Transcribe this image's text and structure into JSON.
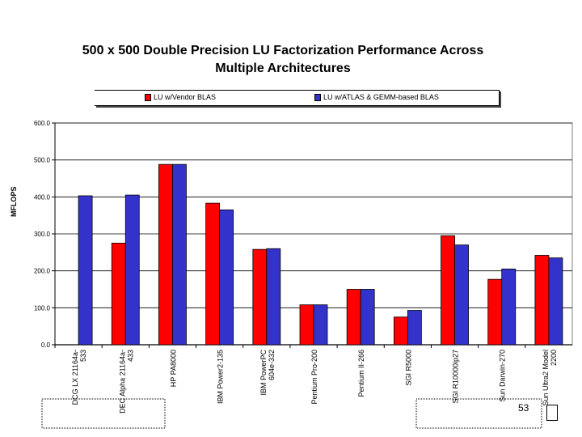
{
  "colors": {
    "vendor": "#ff0000",
    "atlas": "#3333cc",
    "plot_bg": "#ffffff",
    "gridline": "#000000"
  },
  "page_number": "53",
  "chart_data": {
    "type": "bar",
    "title": "500 x 500 Double Precision LU Factorization Performance Across Multiple Architectures",
    "title_lines": [
      "500 x 500 Double Precision LU Factorization Performance Across",
      "Multiple Architectures"
    ],
    "ylabel": "MFLOPS",
    "xlabel": "",
    "ylim": [
      0,
      600
    ],
    "yticks": [
      0,
      100,
      200,
      300,
      400,
      500,
      600
    ],
    "ytick_labels": [
      "0.0",
      "100.0",
      "200.0",
      "300.0",
      "400.0",
      "500.0",
      "600.0"
    ],
    "legend_position": "top",
    "categories": [
      [
        "DCG LX 21164a-",
        "533"
      ],
      [
        "DEC Alpha 21164a-",
        "433"
      ],
      [
        "HP PA8000"
      ],
      [
        "IBM Power2-135"
      ],
      [
        "IBM PowerPC",
        "604e-332"
      ],
      [
        "Pentium Pro-200"
      ],
      [
        "Pentium II-266"
      ],
      [
        "SGI R5000"
      ],
      [
        "SGI R10000ip27"
      ],
      [
        "Sun Darwin-270"
      ],
      [
        "Sun Ultra2 Model",
        "2200"
      ]
    ],
    "series": [
      {
        "name": "LU w/Vendor BLAS",
        "values": [
          null,
          275,
          488,
          383,
          258,
          108,
          150,
          75,
          295,
          177,
          242
        ]
      },
      {
        "name": "LU w/ATLAS & GEMM-based BLAS",
        "values": [
          403,
          405,
          488,
          365,
          260,
          108,
          150,
          93,
          270,
          205,
          235
        ]
      }
    ]
  }
}
